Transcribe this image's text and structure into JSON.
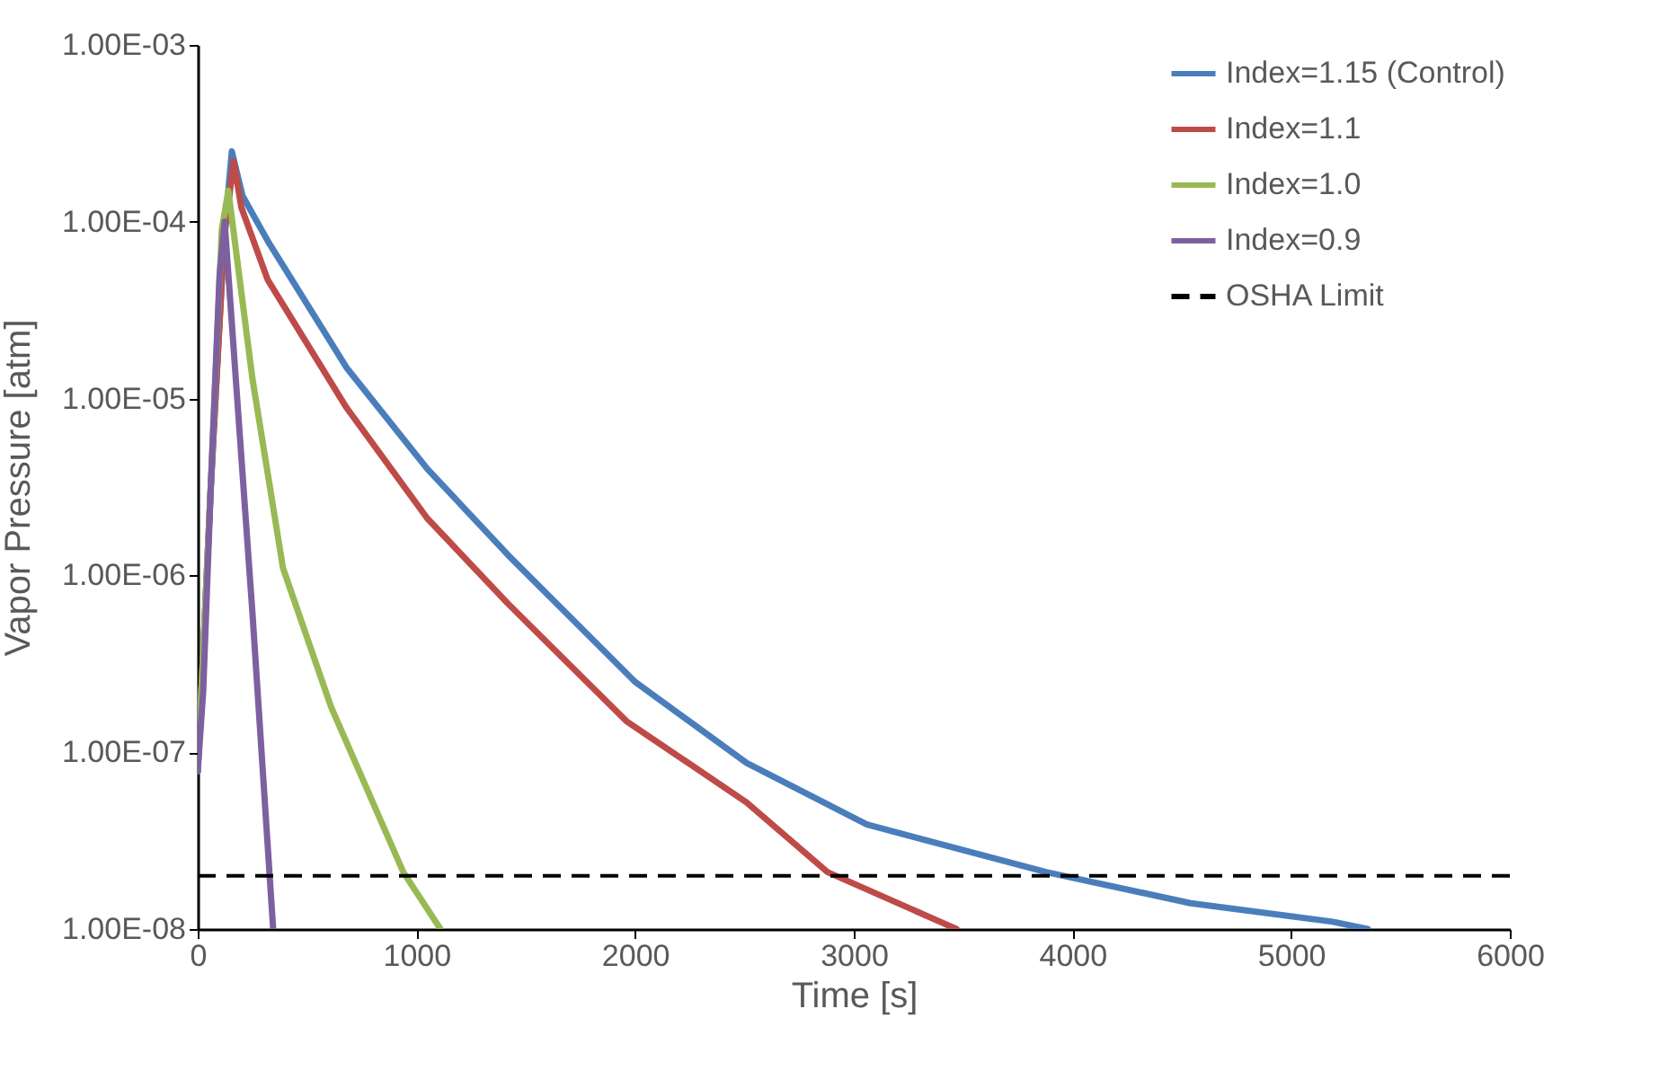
{
  "chart_data": {
    "type": "line",
    "xlabel": "Time [s]",
    "ylabel": "Vapor Pressure [atm]",
    "log": true,
    "grid": false,
    "legend": "top right",
    "line_style": "solid",
    "marker": "none",
    "xlim": [
      0,
      6000
    ],
    "xticks": [
      0,
      1000,
      2000,
      3000,
      4000,
      5000,
      6000
    ],
    "ylim": [
      1e-08,
      0.001
    ],
    "yticks": [
      {
        "value": 1e-08,
        "label": "1.00E-08"
      },
      {
        "value": 1e-07,
        "label": "1.00E-07"
      },
      {
        "value": 1e-06,
        "label": "1.00E-06"
      },
      {
        "value": 1e-05,
        "label": "1.00E-05"
      },
      {
        "value": 0.0001,
        "label": "1.00E-04"
      },
      {
        "value": 0.001,
        "label": "1.00E-03"
      }
    ],
    "series": [
      {
        "name": "Index=1.15 (Control)",
        "color": "#4a7ebb",
        "x": [
          0,
          60,
          120,
          156,
          205,
          320,
          680,
          1050,
          1420,
          2000,
          2510,
          3060,
          3880,
          4540,
          5190,
          5350
        ],
        "values": [
          7.8e-08,
          3.2e-06,
          7.9e-05,
          0.00025,
          0.00014,
          7.8e-05,
          1.5e-05,
          4e-06,
          1.3e-06,
          2.5e-07,
          8.7e-08,
          3.9e-08,
          2.1e-08,
          1.4e-08,
          1.1e-08,
          1e-08
        ]
      },
      {
        "name": "Index=1.1",
        "color": "#be4b48",
        "x": [
          0,
          60,
          120,
          164,
          200,
          320,
          680,
          1050,
          1420,
          1960,
          2510,
          2880,
          3470
        ],
        "values": [
          7.8e-08,
          3.2e-06,
          7.9e-05,
          0.00022,
          0.00012,
          4.7e-05,
          8.9e-06,
          2.1e-06,
          6.9e-07,
          1.5e-07,
          5.2e-08,
          2.1e-08,
          1e-08
        ]
      },
      {
        "name": "Index=1.0",
        "color": "#98b954",
        "x": [
          0,
          60,
          110,
          140,
          250,
          390,
          610,
          940,
          1110
        ],
        "values": [
          7.8e-08,
          3.2e-06,
          9e-05,
          0.00015,
          1.3e-05,
          1.1e-06,
          1.8e-07,
          2.1e-08,
          1e-08
        ]
      },
      {
        "name": "Index=0.9",
        "color": "#7d60a0",
        "x": [
          0,
          25,
          60,
          100,
          123,
          250,
          345
        ],
        "values": [
          7.8e-08,
          2.2e-07,
          3.2e-06,
          5e-05,
          0.0001,
          6.2e-07,
          1e-08
        ]
      }
    ],
    "ref_lines": [
      {
        "axis": "y",
        "value": 2e-08,
        "label": "OSHA Limit",
        "color": "#000000",
        "line_style": "dashed"
      }
    ]
  }
}
